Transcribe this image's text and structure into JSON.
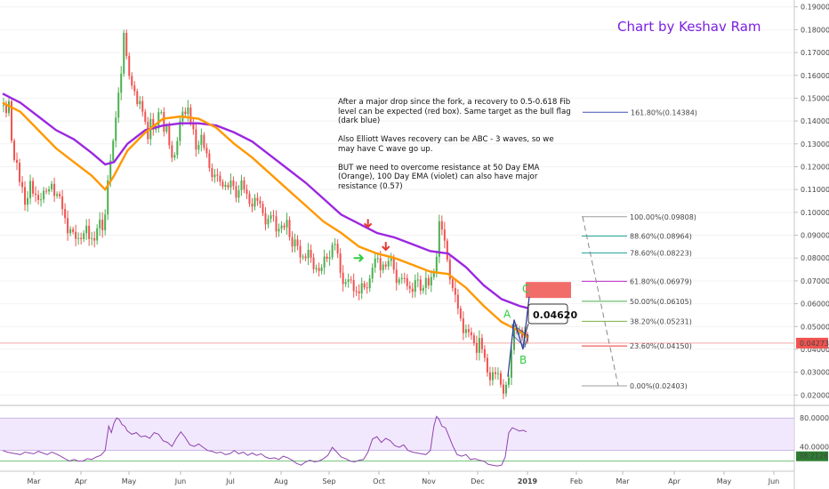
{
  "chart_data": {
    "type": "candlestick",
    "credit": "Chart by Keshav Ram",
    "annotation": "After a major drop since the fork, a recovery to 0.5-0.618 Fib level can be expected (red box). Same target as the bull flag (dark blue)\n\nAlso Elliott Waves recovery can be ABC - 3 waves, so we may have C wave go up.\n\nBUT we need to overcome resistance at 50 Day EMA (Orange), 100 Day EMA (violet) can also have major resistance (0.57)",
    "price_axis": {
      "min": 0.017,
      "max": 0.193,
      "ticks": [
        "0.02000",
        "0.03000",
        "0.04000",
        "0.05000",
        "0.06000",
        "0.07000",
        "0.08000",
        "0.09000",
        "0.10000",
        "0.11000",
        "0.12000",
        "0.13000",
        "0.14000",
        "0.15000",
        "0.16000",
        "0.17000",
        "0.18000",
        "0.19000"
      ]
    },
    "time_axis": {
      "months": [
        "Mar",
        "Apr",
        "May",
        "Jun",
        "Jul",
        "Aug",
        "Sep",
        "Oct",
        "Nov",
        "Dec",
        "2019",
        "Feb",
        "Mar",
        "Apr",
        "May",
        "Jun"
      ]
    },
    "price_path": [
      [
        0,
        0.147
      ],
      [
        3,
        0.142
      ],
      [
        7,
        0.15
      ],
      [
        11,
        0.128
      ],
      [
        15,
        0.122
      ],
      [
        20,
        0.112
      ],
      [
        25,
        0.108
      ],
      [
        30,
        0.114
      ],
      [
        37,
        0.106
      ],
      [
        42,
        0.111
      ],
      [
        48,
        0.11
      ],
      [
        55,
        0.115
      ],
      [
        60,
        0.11
      ],
      [
        66,
        0.108
      ],
      [
        70,
        0.102
      ],
      [
        74,
        0.095
      ],
      [
        78,
        0.093
      ],
      [
        82,
        0.094
      ],
      [
        86,
        0.093
      ],
      [
        90,
        0.092
      ],
      [
        94,
        0.093
      ],
      [
        98,
        0.094
      ],
      [
        103,
        0.093
      ],
      [
        108,
        0.094
      ],
      [
        112,
        0.098
      ],
      [
        116,
        0.105
      ],
      [
        119,
        0.125
      ],
      [
        122,
        0.12
      ],
      [
        125,
        0.14
      ],
      [
        128,
        0.15
      ],
      [
        131,
        0.16
      ],
      [
        134,
        0.17
      ],
      [
        136,
        0.18
      ],
      [
        138,
        0.172
      ],
      [
        141,
        0.165
      ],
      [
        144,
        0.158
      ],
      [
        147,
        0.16
      ],
      [
        150,
        0.15
      ],
      [
        153,
        0.148
      ],
      [
        156,
        0.15
      ],
      [
        160,
        0.142
      ],
      [
        163,
        0.136
      ],
      [
        166,
        0.14
      ],
      [
        170,
        0.134
      ],
      [
        173,
        0.142
      ],
      [
        176,
        0.15
      ],
      [
        178,
        0.146
      ],
      [
        180,
        0.134
      ],
      [
        184,
        0.14
      ],
      [
        188,
        0.13
      ],
      [
        192,
        0.125
      ],
      [
        196,
        0.132
      ],
      [
        199,
        0.14
      ],
      [
        202,
        0.148
      ],
      [
        206,
        0.146
      ],
      [
        210,
        0.142
      ],
      [
        214,
        0.136
      ],
      [
        218,
        0.132
      ],
      [
        222,
        0.134
      ],
      [
        226,
        0.13
      ],
      [
        230,
        0.125
      ],
      [
        234,
        0.12
      ],
      [
        238,
        0.116
      ],
      [
        242,
        0.115
      ],
      [
        246,
        0.113
      ],
      [
        250,
        0.115
      ],
      [
        254,
        0.112
      ],
      [
        258,
        0.113
      ],
      [
        262,
        0.11
      ],
      [
        266,
        0.115
      ],
      [
        270,
        0.112
      ],
      [
        274,
        0.108
      ],
      [
        278,
        0.106
      ],
      [
        282,
        0.108
      ],
      [
        286,
        0.105
      ],
      [
        290,
        0.104
      ],
      [
        294,
        0.1
      ],
      [
        298,
        0.098
      ],
      [
        302,
        0.1
      ],
      [
        306,
        0.096
      ],
      [
        310,
        0.097
      ],
      [
        314,
        0.094
      ],
      [
        318,
        0.096
      ],
      [
        322,
        0.092
      ],
      [
        326,
        0.089
      ],
      [
        330,
        0.086
      ],
      [
        334,
        0.085
      ],
      [
        338,
        0.082
      ],
      [
        342,
        0.083
      ],
      [
        346,
        0.08
      ],
      [
        350,
        0.078
      ],
      [
        354,
        0.079
      ],
      [
        358,
        0.077
      ],
      [
        362,
        0.08
      ],
      [
        366,
        0.085
      ],
      [
        370,
        0.088
      ],
      [
        374,
        0.085
      ],
      [
        377,
        0.081
      ],
      [
        380,
        0.076
      ],
      [
        384,
        0.073
      ],
      [
        388,
        0.07
      ],
      [
        392,
        0.072
      ],
      [
        396,
        0.069
      ],
      [
        400,
        0.07
      ],
      [
        404,
        0.068
      ],
      [
        408,
        0.07
      ],
      [
        412,
        0.074
      ],
      [
        416,
        0.081
      ],
      [
        419,
        0.079
      ],
      [
        422,
        0.081
      ],
      [
        426,
        0.08
      ],
      [
        430,
        0.079
      ],
      [
        434,
        0.08
      ],
      [
        438,
        0.079
      ],
      [
        442,
        0.075
      ],
      [
        446,
        0.072
      ],
      [
        450,
        0.071
      ],
      [
        454,
        0.071
      ],
      [
        458,
        0.07
      ],
      [
        462,
        0.07
      ],
      [
        466,
        0.069
      ],
      [
        470,
        0.069
      ],
      [
        474,
        0.07
      ],
      [
        478,
        0.069
      ],
      [
        482,
        0.071
      ],
      [
        486,
        0.082
      ],
      [
        489,
        0.092
      ],
      [
        491,
        0.098
      ],
      [
        494,
        0.089
      ],
      [
        497,
        0.084
      ],
      [
        500,
        0.08
      ],
      [
        503,
        0.072
      ],
      [
        506,
        0.066
      ],
      [
        509,
        0.06
      ],
      [
        512,
        0.056
      ],
      [
        515,
        0.056
      ],
      [
        518,
        0.051
      ],
      [
        521,
        0.048
      ],
      [
        525,
        0.047
      ],
      [
        529,
        0.045
      ],
      [
        533,
        0.044
      ],
      [
        537,
        0.042
      ],
      [
        541,
        0.037
      ],
      [
        545,
        0.032
      ],
      [
        549,
        0.03
      ],
      [
        553,
        0.029
      ],
      [
        557,
        0.029
      ],
      [
        561,
        0.025
      ],
      [
        564,
        0.025
      ],
      [
        567,
        0.027
      ],
      [
        570,
        0.033
      ],
      [
        572,
        0.043
      ],
      [
        574,
        0.053
      ],
      [
        576,
        0.052
      ],
      [
        578,
        0.051
      ],
      [
        580,
        0.049
      ],
      [
        582,
        0.046
      ],
      [
        584,
        0.047
      ],
      [
        586,
        0.045
      ],
      [
        588,
        0.046
      ],
      [
        590,
        0.045
      ]
    ],
    "ema50": [
      [
        0,
        0.148
      ],
      [
        20,
        0.144
      ],
      [
        40,
        0.136
      ],
      [
        60,
        0.128
      ],
      [
        80,
        0.122
      ],
      [
        100,
        0.116
      ],
      [
        115,
        0.11
      ],
      [
        125,
        0.116
      ],
      [
        140,
        0.127
      ],
      [
        160,
        0.135
      ],
      [
        180,
        0.141
      ],
      [
        200,
        0.142
      ],
      [
        220,
        0.141
      ],
      [
        240,
        0.137
      ],
      [
        260,
        0.13
      ],
      [
        280,
        0.124
      ],
      [
        300,
        0.117
      ],
      [
        320,
        0.11
      ],
      [
        340,
        0.103
      ],
      [
        360,
        0.096
      ],
      [
        380,
        0.091
      ],
      [
        400,
        0.085
      ],
      [
        420,
        0.082
      ],
      [
        440,
        0.08
      ],
      [
        460,
        0.077
      ],
      [
        480,
        0.074
      ],
      [
        500,
        0.073
      ],
      [
        520,
        0.067
      ],
      [
        540,
        0.059
      ],
      [
        560,
        0.052
      ],
      [
        570,
        0.05
      ],
      [
        580,
        0.048
      ],
      [
        590,
        0.045
      ]
    ],
    "ema100": [
      [
        0,
        0.152
      ],
      [
        20,
        0.148
      ],
      [
        40,
        0.142
      ],
      [
        60,
        0.136
      ],
      [
        80,
        0.132
      ],
      [
        100,
        0.126
      ],
      [
        115,
        0.121
      ],
      [
        125,
        0.122
      ],
      [
        140,
        0.13
      ],
      [
        160,
        0.136
      ],
      [
        180,
        0.138
      ],
      [
        200,
        0.139
      ],
      [
        220,
        0.139
      ],
      [
        240,
        0.138
      ],
      [
        260,
        0.135
      ],
      [
        280,
        0.131
      ],
      [
        300,
        0.125
      ],
      [
        320,
        0.119
      ],
      [
        340,
        0.113
      ],
      [
        360,
        0.106
      ],
      [
        380,
        0.099
      ],
      [
        400,
        0.095
      ],
      [
        420,
        0.091
      ],
      [
        440,
        0.089
      ],
      [
        460,
        0.086
      ],
      [
        480,
        0.083
      ],
      [
        500,
        0.082
      ],
      [
        520,
        0.076
      ],
      [
        540,
        0.068
      ],
      [
        560,
        0.062
      ],
      [
        580,
        0.059
      ],
      [
        590,
        0.058
      ]
    ],
    "current_price": "0.04273",
    "flag_label": "0.04620",
    "wave_labels": [
      "A",
      "B",
      "C"
    ],
    "fib_levels": [
      {
        "label": "161.80%(0.14384)",
        "value": 0.14384,
        "color": "#3f51b5"
      },
      {
        "label": "100.00%(0.09808)",
        "value": 0.09808,
        "color": "#9e9e9e"
      },
      {
        "label": "88.60%(0.08964)",
        "value": 0.08964,
        "color": "#26a69a"
      },
      {
        "label": "78.60%(0.08223)",
        "value": 0.08223,
        "color": "#26a69a"
      },
      {
        "label": "61.80%(0.06979)",
        "value": 0.06979,
        "color": "#c027c9"
      },
      {
        "label": "50.00%(0.06105)",
        "value": 0.06105,
        "color": "#4caf50"
      },
      {
        "label": "38.20%(0.05231)",
        "value": 0.05231,
        "color": "#7cb342"
      },
      {
        "label": "23.60%(0.04150)",
        "value": 0.0415,
        "color": "#e53935"
      },
      {
        "label": "0.00%(0.02403)",
        "value": 0.02403,
        "color": "#9e9e9e"
      }
    ],
    "target_box": {
      "from": 0.0625,
      "to": 0.0695,
      "color": "#ef5350"
    },
    "rsi": {
      "labels": [
        "80.0000",
        "40.0000",
        "38.2126"
      ],
      "levels": [
        80,
        40
      ],
      "min": 20,
      "max": 90,
      "values": [
        [
          0,
          40
        ],
        [
          5,
          38
        ],
        [
          10,
          37
        ],
        [
          15,
          36
        ],
        [
          20,
          35
        ],
        [
          25,
          38
        ],
        [
          30,
          37
        ],
        [
          35,
          36
        ],
        [
          40,
          39
        ],
        [
          45,
          37
        ],
        [
          50,
          35
        ],
        [
          55,
          38
        ],
        [
          60,
          36
        ],
        [
          65,
          33
        ],
        [
          70,
          30
        ],
        [
          75,
          27
        ],
        [
          80,
          29
        ],
        [
          85,
          27
        ],
        [
          90,
          27
        ],
        [
          95,
          30
        ],
        [
          100,
          29
        ],
        [
          105,
          32
        ],
        [
          110,
          34
        ],
        [
          115,
          40
        ],
        [
          119,
          70
        ],
        [
          122,
          62
        ],
        [
          125,
          74
        ],
        [
          128,
          80
        ],
        [
          131,
          78
        ],
        [
          134,
          72
        ],
        [
          137,
          70
        ],
        [
          140,
          64
        ],
        [
          145,
          60
        ],
        [
          150,
          62
        ],
        [
          155,
          57
        ],
        [
          160,
          58
        ],
        [
          165,
          55
        ],
        [
          170,
          62
        ],
        [
          175,
          60
        ],
        [
          180,
          52
        ],
        [
          185,
          50
        ],
        [
          190,
          45
        ],
        [
          195,
          55
        ],
        [
          200,
          63
        ],
        [
          205,
          56
        ],
        [
          210,
          47
        ],
        [
          215,
          45
        ],
        [
          220,
          48
        ],
        [
          225,
          44
        ],
        [
          230,
          40
        ],
        [
          235,
          39
        ],
        [
          240,
          37
        ],
        [
          245,
          38
        ],
        [
          250,
          35
        ],
        [
          255,
          36
        ],
        [
          260,
          40
        ],
        [
          265,
          36
        ],
        [
          270,
          38
        ],
        [
          275,
          34
        ],
        [
          280,
          37
        ],
        [
          285,
          34
        ],
        [
          290,
          36
        ],
        [
          295,
          32
        ],
        [
          300,
          30
        ],
        [
          305,
          31
        ],
        [
          310,
          29
        ],
        [
          315,
          33
        ],
        [
          320,
          31
        ],
        [
          325,
          28
        ],
        [
          330,
          24
        ],
        [
          335,
          22
        ],
        [
          340,
          26
        ],
        [
          345,
          28
        ],
        [
          350,
          26
        ],
        [
          355,
          27
        ],
        [
          360,
          30
        ],
        [
          365,
          34
        ],
        [
          370,
          44
        ],
        [
          375,
          38
        ],
        [
          380,
          32
        ],
        [
          385,
          30
        ],
        [
          390,
          27
        ],
        [
          395,
          26
        ],
        [
          400,
          28
        ],
        [
          405,
          29
        ],
        [
          410,
          38
        ],
        [
          415,
          54
        ],
        [
          420,
          57
        ],
        [
          425,
          50
        ],
        [
          430,
          55
        ],
        [
          435,
          52
        ],
        [
          440,
          46
        ],
        [
          445,
          44
        ],
        [
          450,
          47
        ],
        [
          455,
          40
        ],
        [
          460,
          38
        ],
        [
          465,
          37
        ],
        [
          470,
          36
        ],
        [
          475,
          35
        ],
        [
          480,
          40
        ],
        [
          484,
          70
        ],
        [
          487,
          82
        ],
        [
          490,
          78
        ],
        [
          493,
          70
        ],
        [
          497,
          68
        ],
        [
          500,
          60
        ],
        [
          505,
          46
        ],
        [
          510,
          35
        ],
        [
          515,
          33
        ],
        [
          520,
          35
        ],
        [
          525,
          29
        ],
        [
          530,
          30
        ],
        [
          535,
          28
        ],
        [
          540,
          27
        ],
        [
          545,
          23
        ],
        [
          550,
          22
        ],
        [
          555,
          21
        ],
        [
          560,
          22
        ],
        [
          564,
          32
        ],
        [
          568,
          62
        ],
        [
          572,
          68
        ],
        [
          576,
          66
        ],
        [
          580,
          64
        ],
        [
          584,
          65
        ],
        [
          588,
          63
        ]
      ]
    }
  }
}
